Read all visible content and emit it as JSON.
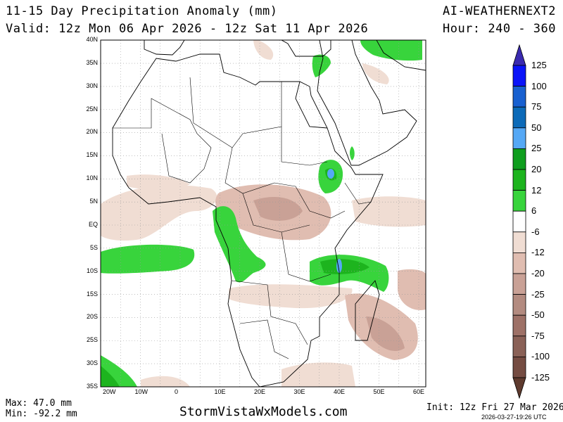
{
  "header": {
    "title": "11-15 Day Precipitation Anomaly (mm)",
    "model": "AI-WEATHERNEXT2",
    "valid": "Valid: 12z Mon 06 Apr 2026 - 12z Sat 11 Apr 2026",
    "hours": "Hour: 240 - 360"
  },
  "map": {
    "lat_labels": [
      "40N",
      "35N",
      "30N",
      "25N",
      "20N",
      "15N",
      "10N",
      "5N",
      "EQ",
      "5S",
      "10S",
      "15S",
      "20S",
      "25S",
      "30S",
      "35S"
    ],
    "lon_labels": [
      "20W",
      "10W",
      "0",
      "10E",
      "20E",
      "30E",
      "40E",
      "50E",
      "60E"
    ]
  },
  "colorbar": {
    "labels": [
      "125",
      "100",
      "75",
      "50",
      "25",
      "20",
      "12",
      "6",
      "-6",
      "-12",
      "-20",
      "-25",
      "-50",
      "-75",
      "-100",
      "-125"
    ],
    "colors": [
      "#0a14f8",
      "#1860d0",
      "#0c6ab8",
      "#55a8f5",
      "#0f9e1e",
      "#1db41e",
      "#38d43c",
      "#ffffff",
      "#f0ddd3",
      "#e0bdb1",
      "#c9a196",
      "#b38b80",
      "#9e7167",
      "#8a6157",
      "#754c42"
    ],
    "top_color": "#3a2ab0",
    "bottom_color": "#5e3a2e"
  },
  "footer": {
    "max": "Max: 47.0 mm",
    "min": "Min: -92.2 mm",
    "site": "StormVistaWxModels.com",
    "init": "Init: 12z Fri 27 Mar 2026",
    "stamp": "2026-03-27-19:26 UTC"
  }
}
